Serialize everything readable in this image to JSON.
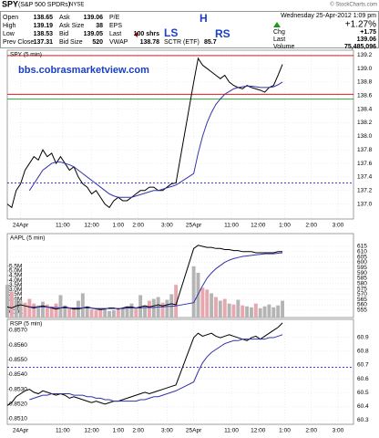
{
  "header": {
    "symbol": "SPY",
    "name": "(S&P 500 SPDRs)",
    "exchange": "NYSE",
    "credit": "© StockCharts.com",
    "quote": [
      [
        {
          "label": "Open",
          "value": "138.65"
        },
        {
          "label": "High",
          "value": "139.19"
        },
        {
          "label": "Low",
          "value": "138.53"
        },
        {
          "label": "Prev Close",
          "value": "137.31"
        }
      ],
      [
        {
          "label": "Ask",
          "value": "139.06"
        },
        {
          "label": "Ask Size",
          "value": "38"
        },
        {
          "label": "Bid",
          "value": "139.05"
        },
        {
          "label": "Bid Size",
          "value": "520"
        }
      ],
      [
        {
          "label": "P/E"
        },
        {
          "label": "EPS"
        },
        {
          "label": "Last",
          "value": "100 shrs"
        },
        {
          "label": "VWAP",
          "value": "138.78"
        }
      ]
    ],
    "sctr": {
      "label": "SCTR (ETF)",
      "value": "85.7"
    },
    "date": "Wednesday 25-Apr-2012 1:09 pm",
    "change_pct": "+1.27%",
    "fields": [
      {
        "label": "Chg",
        "value": "+1.75"
      },
      {
        "label": "Last",
        "value": "139.06"
      },
      {
        "label": "Volume",
        "value": "75,485,096"
      }
    ]
  },
  "annotations": {
    "watermark": "bbs.cobrasmarketview.com",
    "labels": [
      "H",
      "LS",
      "RS"
    ]
  },
  "chart_data": [
    {
      "type": "line",
      "title": "SPY (5 min)",
      "grid": true,
      "x": [
        0,
        2,
        4,
        6,
        8,
        10,
        12,
        14,
        16,
        18,
        20,
        22,
        24,
        26,
        28,
        30,
        32,
        34,
        36,
        38,
        40,
        42,
        44,
        46,
        48,
        50,
        52,
        54,
        56,
        58,
        60,
        62,
        64,
        66,
        68,
        70,
        72,
        74,
        76,
        84,
        86,
        88,
        90,
        92,
        94,
        96,
        98,
        100,
        102,
        104,
        106,
        108,
        110,
        112,
        114,
        116,
        118,
        120,
        122,
        124
      ],
      "xlim": [
        0,
        156
      ],
      "xticks": [
        {
          "value": 6,
          "label": "24Apr"
        },
        {
          "value": 25,
          "label": "11:00"
        },
        {
          "value": 38,
          "label": "12:00"
        },
        {
          "value": 50,
          "label": "1:00"
        },
        {
          "value": 59,
          "label": "2:00"
        },
        {
          "value": 72,
          "label": "3:00"
        },
        {
          "value": 84,
          "label": "25Apr"
        },
        {
          "value": 101,
          "label": "11:00"
        },
        {
          "value": 113,
          "label": "12:00"
        },
        {
          "value": 125,
          "label": "1:00"
        },
        {
          "value": 137,
          "label": "2:00"
        },
        {
          "value": 149,
          "label": "3:00"
        }
      ],
      "ylim": [
        136.78,
        139.27
      ],
      "yticks": [
        139.2,
        {
          "value": 139,
          "label": "139.0"
        },
        138.8,
        138.6,
        138.4,
        138.2,
        {
          "value": 138,
          "label": "138.0"
        },
        137.8,
        137.6,
        137.4,
        137.2,
        {
          "value": 137,
          "label": "137.0"
        }
      ],
      "reference_lines": [
        {
          "value": 139.19,
          "color": "#cc0000"
        },
        {
          "value": 138.62,
          "color": "#cc0000"
        },
        {
          "value": 138.55,
          "color": "#009900"
        },
        {
          "value": 137.31,
          "color": "#0000cc",
          "dash": true
        }
      ],
      "series": [
        {
          "color": "#000000",
          "values": [
            137.0,
            136.95,
            137.2,
            137.3,
            137.5,
            137.6,
            137.7,
            137.65,
            137.8,
            137.7,
            137.75,
            137.6,
            137.7,
            137.6,
            137.5,
            137.55,
            137.4,
            137.3,
            137.25,
            137.15,
            137.2,
            137.1,
            137.0,
            136.95,
            137.05,
            137.1,
            137.05,
            137.05,
            137.1,
            137.15,
            137.2,
            137.2,
            137.25,
            137.25,
            137.2,
            137.2,
            137.25,
            137.3,
            137.31,
            138.8,
            139.15,
            139.05,
            139.0,
            138.95,
            138.9,
            138.85,
            138.9,
            138.8,
            138.75,
            138.72,
            138.7,
            138.75,
            138.72,
            138.7,
            138.68,
            138.65,
            138.72,
            138.75,
            138.9,
            139.06
          ]
        },
        {
          "color": "#3333aa",
          "values": [
            null,
            null,
            null,
            null,
            null,
            137.2,
            137.3,
            137.4,
            137.5,
            137.55,
            137.6,
            137.62,
            137.62,
            137.6,
            137.58,
            137.55,
            137.5,
            137.45,
            137.4,
            137.35,
            137.3,
            137.25,
            137.2,
            137.15,
            137.12,
            137.1,
            137.1,
            137.1,
            137.1,
            137.12,
            137.14,
            137.16,
            137.18,
            137.2,
            137.2,
            137.22,
            137.24,
            137.26,
            137.28,
            137.45,
            137.75,
            138.0,
            138.2,
            138.35,
            138.47,
            138.55,
            138.62,
            138.66,
            138.7,
            138.72,
            138.73,
            138.74,
            138.74,
            138.73,
            138.72,
            138.72,
            138.72,
            138.73,
            138.76,
            138.8
          ]
        }
      ]
    },
    {
      "type": "line",
      "title": "AAPL (5 min)",
      "grid": true,
      "x": [
        0,
        2,
        4,
        6,
        8,
        10,
        12,
        14,
        16,
        18,
        20,
        22,
        24,
        26,
        28,
        30,
        32,
        34,
        36,
        38,
        40,
        42,
        44,
        46,
        48,
        50,
        52,
        54,
        56,
        58,
        60,
        62,
        64,
        66,
        68,
        70,
        72,
        74,
        76,
        84,
        86,
        88,
        90,
        92,
        94,
        96,
        98,
        100,
        102,
        104,
        106,
        108,
        110,
        112,
        114,
        116,
        118,
        120,
        122,
        124
      ],
      "xlim": [
        0,
        156
      ],
      "ylim": [
        548,
        627
      ],
      "yticks": [
        615,
        610,
        605,
        600,
        595,
        590,
        585,
        580,
        575,
        570,
        565,
        560,
        555
      ],
      "y2lim": [
        0,
        9000000
      ],
      "y2ticks": [
        {
          "value": 5500000,
          "label": "5.5M"
        },
        {
          "value": 5000000,
          "label": "5.0M"
        },
        {
          "value": 4500000,
          "label": "4.5M"
        },
        {
          "value": 4000000,
          "label": "4.0M"
        },
        {
          "value": 3500000,
          "label": "3.5M"
        },
        {
          "value": 3000000,
          "label": "3.0M"
        },
        {
          "value": 2500000,
          "label": "2.5M"
        },
        {
          "value": 2000000,
          "label": "2.0M"
        },
        {
          "value": 1500000,
          "label": "1.5M"
        },
        {
          "value": 1000000,
          "label": "1.0M"
        },
        {
          "value": 600000,
          "label": "600K"
        }
      ],
      "series": [
        {
          "type": "bar",
          "axis": "y2",
          "up_color": "#b4b4b4",
          "down_color": "#e8a6ae",
          "values": [
            3500000,
            2800000,
            2200000,
            1800000,
            1600000,
            2000000,
            1500000,
            1300000,
            1700000,
            1400000,
            1200000,
            1500000,
            2400000,
            1300000,
            1100000,
            1000000,
            1800000,
            2600000,
            1200000,
            900000,
            800000,
            1000000,
            900000,
            700000,
            800000,
            900000,
            1000000,
            1200000,
            1500000,
            1100000,
            2400000,
            1300000,
            1800000,
            2000000,
            2200000,
            1600000,
            1900000,
            2500000,
            3500000,
            5500000,
            4800000,
            3200000,
            3000000,
            2600000,
            2200000,
            1800000,
            2000000,
            1500000,
            1400000,
            1900000,
            1300000,
            1200000,
            1100000,
            1500000,
            1000000,
            1200000,
            1400000,
            1100000,
            1300000,
            1800000
          ]
        },
        {
          "color": "#000000",
          "values": [
            558,
            557,
            559,
            560,
            559,
            558,
            557,
            558,
            559,
            558,
            557,
            556,
            557,
            558,
            557,
            556,
            556,
            557,
            558,
            557,
            556,
            555.5,
            556,
            557,
            557,
            556,
            557,
            558,
            558,
            557,
            558,
            559,
            558,
            559,
            560,
            559,
            560,
            561,
            560,
            613,
            616,
            615,
            614,
            614,
            613,
            613,
            612,
            612,
            611,
            611,
            610,
            610,
            610,
            609,
            609,
            609,
            609,
            609,
            610,
            610
          ]
        },
        {
          "color": "#3333aa",
          "values": [
            null,
            null,
            null,
            null,
            null,
            558,
            558,
            558,
            558,
            558,
            557.5,
            557.5,
            557,
            557,
            557,
            557,
            557,
            557,
            557,
            557,
            556.5,
            556.5,
            556.5,
            556.5,
            556.5,
            556.5,
            556.5,
            557,
            557,
            557,
            557,
            557.5,
            557.5,
            557.5,
            558,
            558,
            558.5,
            558.5,
            559,
            562,
            570,
            578,
            585,
            590,
            594,
            597,
            600,
            602,
            603.5,
            604.5,
            605.5,
            606,
            606.5,
            607,
            607.5,
            608,
            608,
            608,
            608.5,
            609
          ]
        }
      ]
    },
    {
      "type": "line",
      "title": "RSP (5 min)",
      "grid": true,
      "x": [
        0,
        2,
        4,
        6,
        8,
        10,
        12,
        14,
        16,
        18,
        20,
        22,
        24,
        26,
        28,
        30,
        32,
        34,
        36,
        38,
        40,
        42,
        44,
        46,
        48,
        50,
        52,
        54,
        56,
        58,
        60,
        62,
        64,
        66,
        68,
        70,
        72,
        74,
        76,
        84,
        86,
        88,
        90,
        92,
        94,
        96,
        98,
        100,
        102,
        104,
        106,
        108,
        110,
        112,
        114,
        116,
        118,
        120,
        122,
        124
      ],
      "xlim": [
        0,
        156
      ],
      "xticks": [
        {
          "value": 6,
          "label": "24Apr"
        },
        {
          "value": 25,
          "label": "11:00"
        },
        {
          "value": 38,
          "label": "12:00"
        },
        {
          "value": 50,
          "label": "1:00"
        },
        {
          "value": 59,
          "label": "2:00"
        },
        {
          "value": 72,
          "label": "3:00"
        },
        {
          "value": 84,
          "label": "25Apr"
        },
        {
          "value": 101,
          "label": "11:00"
        },
        {
          "value": 113,
          "label": "12:00"
        },
        {
          "value": 125,
          "label": "1:00"
        },
        {
          "value": 137,
          "label": "2:00"
        },
        {
          "value": 149,
          "label": "3:00"
        }
      ],
      "ylim": [
        60.27,
        61.03
      ],
      "yticks": [
        60.9,
        60.8,
        60.7,
        60.6,
        60.5,
        60.4,
        60.3
      ],
      "y2lim": [
        0.85063,
        0.85774
      ],
      "y2ticks": [
        {
          "value": 0.857,
          "label": "0.8570"
        },
        {
          "value": 0.856,
          "label": "0.8560"
        },
        {
          "value": 0.855,
          "label": "0.8550"
        },
        {
          "value": 0.854,
          "label": "0.8540"
        },
        {
          "value": 0.853,
          "label": "0.8530"
        },
        {
          "value": 0.852,
          "label": "0.8520"
        },
        {
          "value": 0.851,
          "label": "0.8510"
        }
      ],
      "reference_lines": [
        {
          "value": 0.8545,
          "axis": "y2",
          "color": "#0000cc",
          "dash": true
        }
      ],
      "series": [
        {
          "color": "#000000",
          "axis": "y2",
          "values": [
            0.8519,
            0.8521,
            0.8525,
            0.8527,
            0.8529,
            0.853,
            0.8528,
            0.8527,
            0.8529,
            0.8528,
            0.8527,
            0.8526,
            0.8527,
            0.8526,
            0.8524,
            0.8525,
            0.8524,
            0.8523,
            0.8522,
            0.8521,
            0.8522,
            0.8521,
            0.852,
            0.8521,
            0.8522,
            0.8522,
            0.8523,
            0.8524,
            0.8525,
            0.8526,
            0.8527,
            0.8528,
            0.8527,
            0.8528,
            0.8529,
            0.853,
            0.8531,
            0.8532,
            0.8533,
            0.8565,
            0.8568,
            0.8566,
            0.8567,
            0.8568,
            0.8566,
            0.8565,
            0.8566,
            0.8567,
            0.8566,
            0.8565,
            0.8564,
            0.8563,
            0.8565,
            0.8566,
            0.8564,
            0.8566,
            0.8568,
            0.857,
            0.8572,
            0.8575
          ]
        },
        {
          "color": "#3333aa",
          "axis": "y2",
          "values": [
            null,
            null,
            null,
            null,
            null,
            0.8523,
            0.8524,
            0.8525,
            0.8526,
            0.8526,
            0.8527,
            0.8527,
            0.8527,
            0.8527,
            0.8527,
            0.8526,
            0.8526,
            0.8526,
            0.8525,
            0.8525,
            0.8524,
            0.8524,
            0.8523,
            0.8523,
            0.8522,
            0.8522,
            0.8522,
            0.8522,
            0.8522,
            0.8522,
            0.8523,
            0.8523,
            0.8524,
            0.8525,
            0.8525,
            0.8526,
            0.8527,
            0.8528,
            0.8529,
            0.8535,
            0.8542,
            0.8548,
            0.8552,
            0.8555,
            0.8557,
            0.8559,
            0.8561,
            0.8562,
            0.8563,
            0.8563,
            0.8564,
            0.8564,
            0.8564,
            0.8564,
            0.8564,
            0.8564,
            0.8565,
            0.8565,
            0.8566,
            0.8567
          ]
        }
      ]
    }
  ]
}
